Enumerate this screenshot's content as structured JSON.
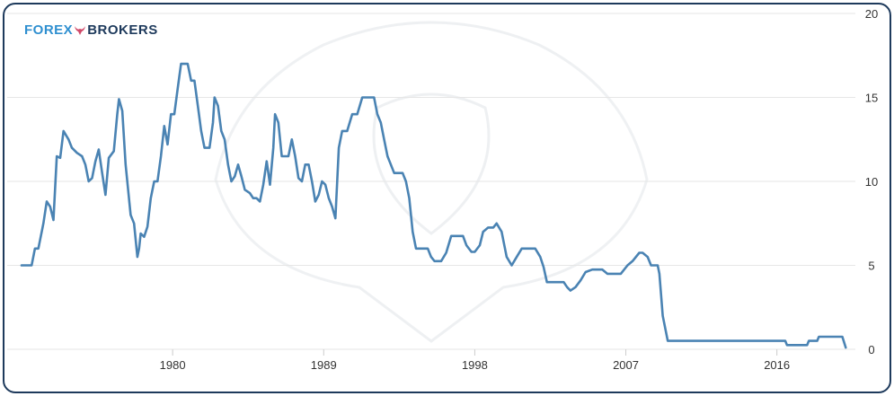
{
  "brand": {
    "word1": "FOREX",
    "word2": "BROKERS",
    "icon": "bull-head-icon",
    "color_primary": "#2f8fd0",
    "color_dark": "#1e3a5c"
  },
  "chart_data": {
    "type": "line",
    "title": "",
    "xlabel": "",
    "ylabel": "",
    "xlim": [
      1971,
      2020.3
    ],
    "ylim": [
      0,
      20
    ],
    "x_ticks": [
      1980,
      1989,
      1998,
      2007,
      2016
    ],
    "y_ticks": [
      0,
      5,
      10,
      15,
      20
    ],
    "grid": "horizontal",
    "axis_side": "right",
    "line_color": "#4a83b3",
    "series": [
      {
        "values": [
          [
            1971.0,
            5.0
          ],
          [
            1971.6,
            5.0
          ],
          [
            1971.8,
            6.0
          ],
          [
            1972.0,
            6.0
          ],
          [
            1972.3,
            7.5
          ],
          [
            1972.5,
            8.8
          ],
          [
            1972.7,
            8.5
          ],
          [
            1972.9,
            7.7
          ],
          [
            1973.1,
            11.5
          ],
          [
            1973.3,
            11.4
          ],
          [
            1973.5,
            13.0
          ],
          [
            1973.8,
            12.5
          ],
          [
            1974.0,
            12.0
          ],
          [
            1974.3,
            11.7
          ],
          [
            1974.6,
            11.5
          ],
          [
            1974.8,
            11.0
          ],
          [
            1975.0,
            10.0
          ],
          [
            1975.2,
            10.2
          ],
          [
            1975.4,
            11.2
          ],
          [
            1975.6,
            11.9
          ],
          [
            1975.8,
            10.5
          ],
          [
            1976.0,
            9.2
          ],
          [
            1976.2,
            11.4
          ],
          [
            1976.5,
            11.8
          ],
          [
            1976.7,
            14.0
          ],
          [
            1976.8,
            14.9
          ],
          [
            1977.0,
            14.2
          ],
          [
            1977.2,
            11.0
          ],
          [
            1977.5,
            8.0
          ],
          [
            1977.7,
            7.5
          ],
          [
            1977.9,
            5.5
          ],
          [
            1978.0,
            6.0
          ],
          [
            1978.1,
            6.9
          ],
          [
            1978.3,
            6.7
          ],
          [
            1978.5,
            7.3
          ],
          [
            1978.7,
            9.0
          ],
          [
            1978.9,
            10.0
          ],
          [
            1979.1,
            10.0
          ],
          [
            1979.3,
            11.5
          ],
          [
            1979.5,
            13.3
          ],
          [
            1979.7,
            12.2
          ],
          [
            1979.9,
            14.0
          ],
          [
            1980.1,
            14.0
          ],
          [
            1980.3,
            15.5
          ],
          [
            1980.5,
            17.0
          ],
          [
            1980.9,
            17.0
          ],
          [
            1981.1,
            16.0
          ],
          [
            1981.3,
            16.0
          ],
          [
            1981.5,
            14.5
          ],
          [
            1981.7,
            13.0
          ],
          [
            1981.9,
            12.0
          ],
          [
            1982.2,
            12.0
          ],
          [
            1982.4,
            13.5
          ],
          [
            1982.5,
            15.0
          ],
          [
            1982.7,
            14.5
          ],
          [
            1982.9,
            13.0
          ],
          [
            1983.1,
            12.5
          ],
          [
            1983.3,
            11.0
          ],
          [
            1983.5,
            10.0
          ],
          [
            1983.7,
            10.3
          ],
          [
            1983.9,
            11.0
          ],
          [
            1984.1,
            10.3
          ],
          [
            1984.3,
            9.5
          ],
          [
            1984.6,
            9.3
          ],
          [
            1984.8,
            9.0
          ],
          [
            1985.0,
            9.0
          ],
          [
            1985.2,
            8.8
          ],
          [
            1985.4,
            9.8
          ],
          [
            1985.6,
            11.2
          ],
          [
            1985.8,
            9.8
          ],
          [
            1986.0,
            12.0
          ],
          [
            1986.1,
            14.0
          ],
          [
            1986.3,
            13.5
          ],
          [
            1986.5,
            11.5
          ],
          [
            1986.7,
            11.5
          ],
          [
            1986.9,
            11.5
          ],
          [
            1987.1,
            12.5
          ],
          [
            1987.3,
            11.5
          ],
          [
            1987.5,
            10.2
          ],
          [
            1987.7,
            10.0
          ],
          [
            1987.9,
            11.0
          ],
          [
            1988.1,
            11.0
          ],
          [
            1988.3,
            10.0
          ],
          [
            1988.5,
            8.8
          ],
          [
            1988.7,
            9.2
          ],
          [
            1988.9,
            10.0
          ],
          [
            1989.1,
            9.8
          ],
          [
            1989.3,
            9.0
          ],
          [
            1989.5,
            8.5
          ],
          [
            1989.7,
            7.8
          ],
          [
            1989.9,
            12.0
          ],
          [
            1990.1,
            13.0
          ],
          [
            1990.4,
            13.0
          ],
          [
            1990.7,
            14.0
          ],
          [
            1991.0,
            14.0
          ],
          [
            1991.3,
            15.0
          ],
          [
            1992.0,
            15.0
          ],
          [
            1992.2,
            14.0
          ],
          [
            1992.4,
            13.5
          ],
          [
            1992.6,
            12.5
          ],
          [
            1992.8,
            11.5
          ],
          [
            1993.0,
            11.0
          ],
          [
            1993.2,
            10.5
          ],
          [
            1993.7,
            10.5
          ],
          [
            1993.9,
            10.0
          ],
          [
            1994.1,
            9.0
          ],
          [
            1994.3,
            7.0
          ],
          [
            1994.5,
            6.0
          ],
          [
            1995.2,
            6.0
          ],
          [
            1995.4,
            5.5
          ],
          [
            1995.6,
            5.25
          ],
          [
            1996.0,
            5.25
          ],
          [
            1996.3,
            5.75
          ],
          [
            1996.6,
            6.75
          ],
          [
            1997.3,
            6.75
          ],
          [
            1997.5,
            6.2
          ],
          [
            1997.8,
            5.8
          ],
          [
            1998.0,
            5.8
          ],
          [
            1998.3,
            6.2
          ],
          [
            1998.5,
            7.0
          ],
          [
            1998.8,
            7.25
          ],
          [
            1999.1,
            7.25
          ],
          [
            1999.3,
            7.5
          ],
          [
            1999.6,
            7.0
          ],
          [
            1999.9,
            5.5
          ],
          [
            2000.2,
            5.0
          ],
          [
            2000.5,
            5.5
          ],
          [
            2000.8,
            6.0
          ],
          [
            2001.6,
            6.0
          ],
          [
            2001.9,
            5.5
          ],
          [
            2002.1,
            4.9
          ],
          [
            2002.3,
            4.0
          ],
          [
            2003.3,
            4.0
          ],
          [
            2003.5,
            3.7
          ],
          [
            2003.7,
            3.5
          ],
          [
            2004.0,
            3.7
          ],
          [
            2004.3,
            4.1
          ],
          [
            2004.6,
            4.6
          ],
          [
            2005.0,
            4.75
          ],
          [
            2005.6,
            4.75
          ],
          [
            2005.9,
            4.5
          ],
          [
            2006.7,
            4.5
          ],
          [
            2007.1,
            5.0
          ],
          [
            2007.4,
            5.25
          ],
          [
            2007.8,
            5.75
          ],
          [
            2008.0,
            5.75
          ],
          [
            2008.3,
            5.5
          ],
          [
            2008.5,
            5.0
          ],
          [
            2008.9,
            5.0
          ],
          [
            2009.0,
            4.5
          ],
          [
            2009.2,
            2.0
          ],
          [
            2009.5,
            0.5
          ],
          [
            2016.5,
            0.5
          ],
          [
            2016.6,
            0.25
          ],
          [
            2017.8,
            0.25
          ],
          [
            2017.9,
            0.5
          ],
          [
            2018.4,
            0.5
          ],
          [
            2018.5,
            0.75
          ],
          [
            2019.9,
            0.75
          ],
          [
            2020.1,
            0.1
          ]
        ]
      }
    ]
  }
}
